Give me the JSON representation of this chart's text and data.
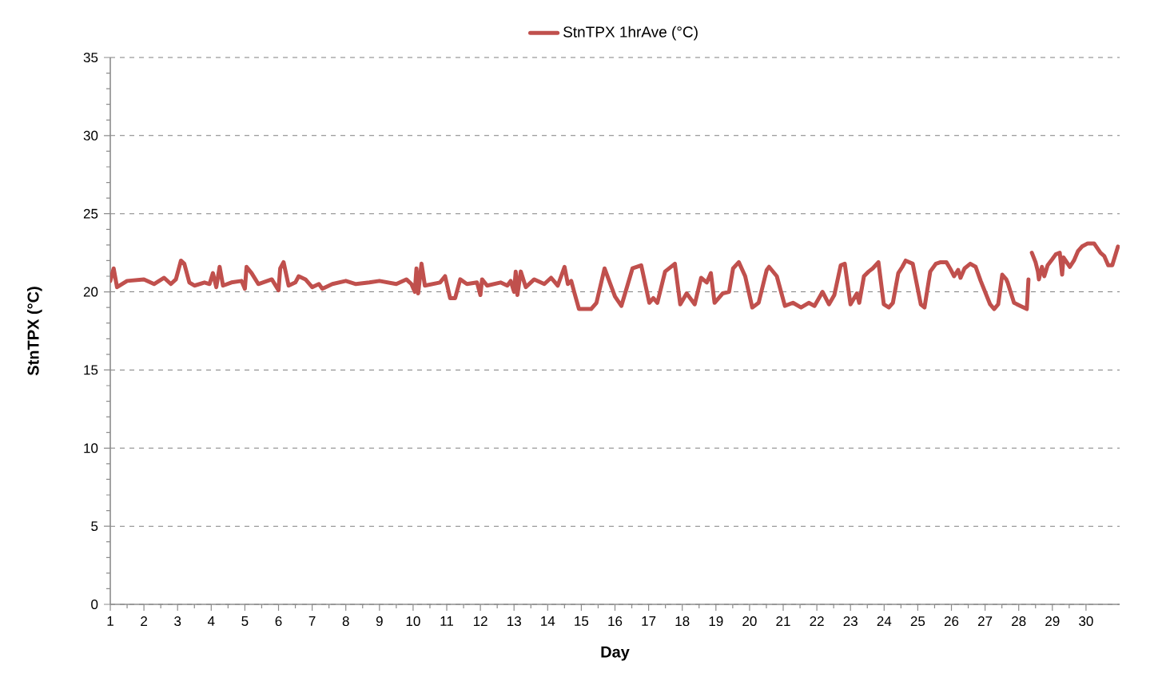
{
  "chart_data": {
    "type": "line",
    "xlabel": "Day",
    "ylabel": "StnTPX (°C)",
    "x": [
      1.0,
      1.1,
      1.2,
      1.5,
      2.0,
      2.3,
      2.6,
      2.8,
      2.95,
      3.1,
      3.2,
      3.35,
      3.5,
      3.8,
      3.95,
      4.05,
      4.15,
      4.25,
      4.35,
      4.6,
      4.9,
      5.0,
      5.05,
      5.2,
      5.4,
      5.8,
      6.0,
      6.05,
      6.15,
      6.3,
      6.5,
      6.6,
      6.8,
      7.0,
      7.2,
      7.3,
      7.6,
      8.0,
      8.3,
      8.7,
      9.0,
      9.5,
      9.8,
      9.95,
      10.05,
      10.1,
      10.15,
      10.25,
      10.35,
      10.8,
      10.95,
      11.1,
      11.25,
      11.4,
      11.6,
      11.9,
      12.0,
      12.05,
      12.2,
      12.6,
      12.8,
      12.9,
      13.0,
      13.05,
      13.1,
      13.2,
      13.35,
      13.6,
      13.9,
      14.1,
      14.3,
      14.5,
      14.6,
      14.7,
      14.8,
      14.93,
      15.29,
      15.45,
      15.69,
      16.0,
      16.19,
      16.52,
      16.78,
      17.02,
      17.14,
      17.26,
      17.49,
      17.78,
      17.94,
      18.13,
      18.37,
      18.56,
      18.73,
      18.85,
      18.96,
      19.2,
      19.39,
      19.51,
      19.68,
      19.87,
      20.08,
      20.27,
      20.51,
      20.58,
      20.81,
      21.05,
      21.29,
      21.53,
      21.76,
      21.93,
      22.17,
      22.36,
      22.52,
      22.71,
      22.83,
      23.0,
      23.19,
      23.26,
      23.4,
      23.54,
      23.66,
      23.83,
      23.99,
      24.14,
      24.26,
      24.42,
      24.54,
      24.64,
      24.85,
      25.09,
      25.2,
      25.37,
      25.54,
      25.68,
      25.85,
      25.96,
      26.08,
      26.2,
      26.27,
      26.39,
      26.56,
      26.72,
      26.87,
      27.15,
      27.27,
      27.39,
      27.51,
      27.63,
      27.67,
      27.86,
      28.05,
      28.24,
      28.29,
      28.34,
      28.39,
      28.5,
      28.57,
      28.6,
      28.69,
      28.76,
      28.86,
      29.0,
      29.1,
      29.22,
      29.29,
      29.33,
      29.52,
      29.64,
      29.76,
      29.88,
      30.05,
      30.24,
      30.43,
      30.54,
      30.66,
      30.78,
      30.95
    ],
    "series": [
      {
        "name": "StnTPX 1hrAve (°C)",
        "color": "#c0504d",
        "values": [
          20.7,
          21.5,
          20.3,
          20.7,
          20.8,
          20.5,
          20.9,
          20.5,
          20.8,
          22.0,
          21.8,
          20.6,
          20.4,
          20.6,
          20.5,
          21.2,
          20.3,
          21.6,
          20.4,
          20.6,
          20.7,
          20.2,
          21.6,
          21.2,
          20.5,
          20.8,
          20.1,
          21.5,
          21.9,
          20.4,
          20.6,
          21.0,
          20.8,
          20.3,
          20.5,
          20.2,
          20.5,
          20.7,
          20.5,
          20.6,
          20.7,
          20.5,
          20.8,
          20.5,
          20.0,
          21.5,
          19.9,
          21.8,
          20.4,
          20.6,
          21.0,
          19.6,
          19.6,
          20.8,
          20.5,
          20.6,
          19.8,
          20.8,
          20.4,
          20.6,
          20.4,
          20.7,
          20.0,
          21.3,
          19.8,
          21.3,
          20.3,
          20.8,
          20.5,
          20.9,
          20.4,
          21.6,
          20.5,
          20.7,
          19.9,
          18.9,
          18.9,
          19.3,
          21.5,
          19.7,
          19.1,
          21.5,
          21.7,
          19.3,
          19.6,
          19.3,
          21.3,
          21.8,
          19.2,
          19.9,
          19.2,
          20.9,
          20.6,
          21.2,
          19.3,
          19.9,
          20.0,
          21.5,
          21.9,
          21.0,
          19.0,
          19.3,
          21.4,
          21.6,
          21.0,
          19.1,
          19.3,
          19.0,
          19.3,
          19.1,
          20.0,
          19.2,
          19.8,
          21.7,
          21.8,
          19.2,
          19.9,
          19.3,
          21.0,
          21.3,
          21.5,
          21.9,
          19.2,
          19.0,
          19.3,
          21.2,
          21.6,
          22.0,
          21.8,
          19.2,
          19.0,
          21.3,
          21.8,
          21.9,
          21.9,
          21.5,
          21.0,
          21.4,
          20.9,
          21.5,
          21.8,
          21.6,
          20.7,
          19.2,
          18.9,
          19.2,
          21.1,
          20.8,
          20.6,
          19.3,
          19.1,
          18.9,
          20.8,
          null,
          22.5,
          21.9,
          21.3,
          20.8,
          21.6,
          21.0,
          21.7,
          22.1,
          22.4,
          22.5,
          21.1,
          22.2,
          21.6,
          22.0,
          22.6,
          22.9,
          23.1,
          23.1,
          22.5,
          22.3,
          21.7,
          21.7,
          22.9
        ]
      }
    ],
    "xlim": [
      1,
      31
    ],
    "ylim": [
      0,
      35
    ],
    "xticks": [
      1,
      2,
      3,
      4,
      5,
      6,
      7,
      8,
      9,
      10,
      11,
      12,
      13,
      14,
      15,
      16,
      17,
      18,
      19,
      20,
      21,
      22,
      23,
      24,
      25,
      26,
      27,
      28,
      29,
      30
    ],
    "yticks": [
      0,
      5,
      10,
      15,
      20,
      25,
      30,
      35
    ],
    "grid": "y",
    "legend": "top",
    "marker": "none",
    "line_style": "solid"
  }
}
